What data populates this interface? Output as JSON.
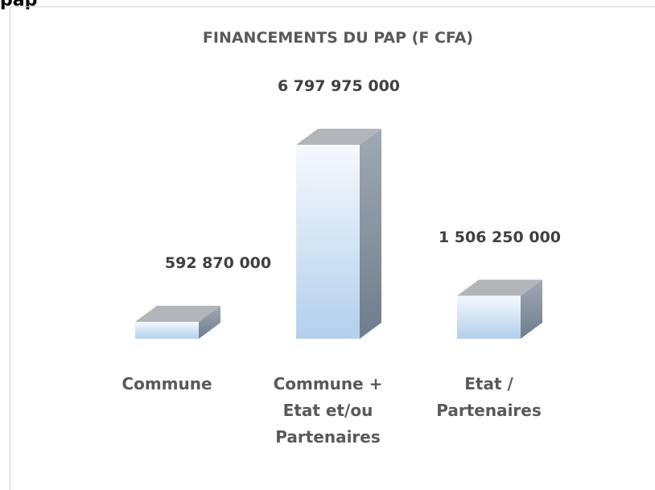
{
  "header": "pap",
  "chart_data": {
    "type": "bar3d",
    "title": "FINANCEMENTS DU PAP  (F CFA)",
    "categories": [
      "Commune",
      "Commune + Etat et/ou Partenaires",
      "Etat / Partenaires"
    ],
    "values": [
      592870000,
      6797975000,
      1506250000
    ],
    "value_labels": [
      "592 870 000",
      "6 797 975 000",
      "1 506 250 000"
    ]
  }
}
